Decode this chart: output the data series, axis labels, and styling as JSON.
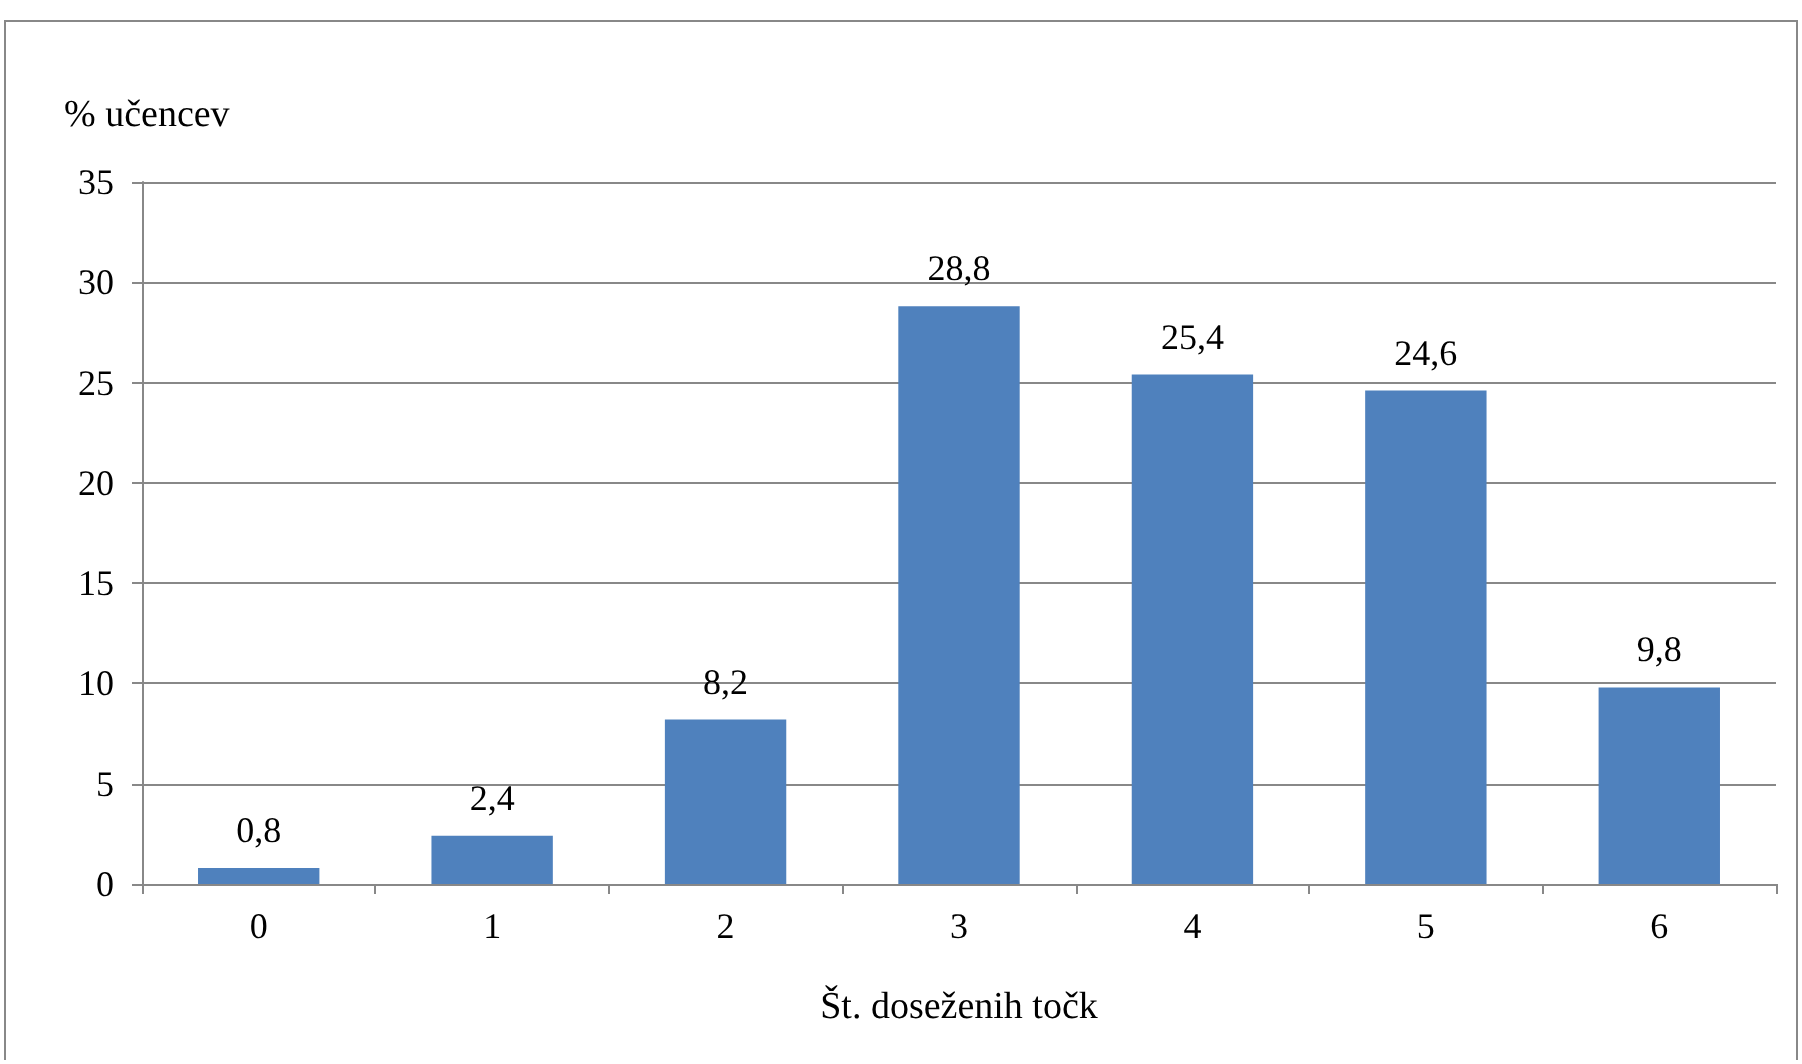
{
  "chart_data": {
    "type": "bar",
    "ylabel": "% učencev",
    "xlabel": "Št. doseženih točk",
    "categories": [
      "0",
      "1",
      "2",
      "3",
      "4",
      "5",
      "6"
    ],
    "values": [
      0.8,
      2.4,
      8.2,
      28.8,
      25.4,
      24.6,
      9.8
    ],
    "value_labels": [
      "0,8",
      "2,4",
      "8,2",
      "28,8",
      "25,4",
      "24,6",
      "9,8"
    ],
    "color": "#4f81bd",
    "ylim": [
      0,
      35
    ],
    "yticks": [
      0,
      5,
      10,
      15,
      20,
      25,
      30,
      35
    ],
    "grid": "y"
  }
}
